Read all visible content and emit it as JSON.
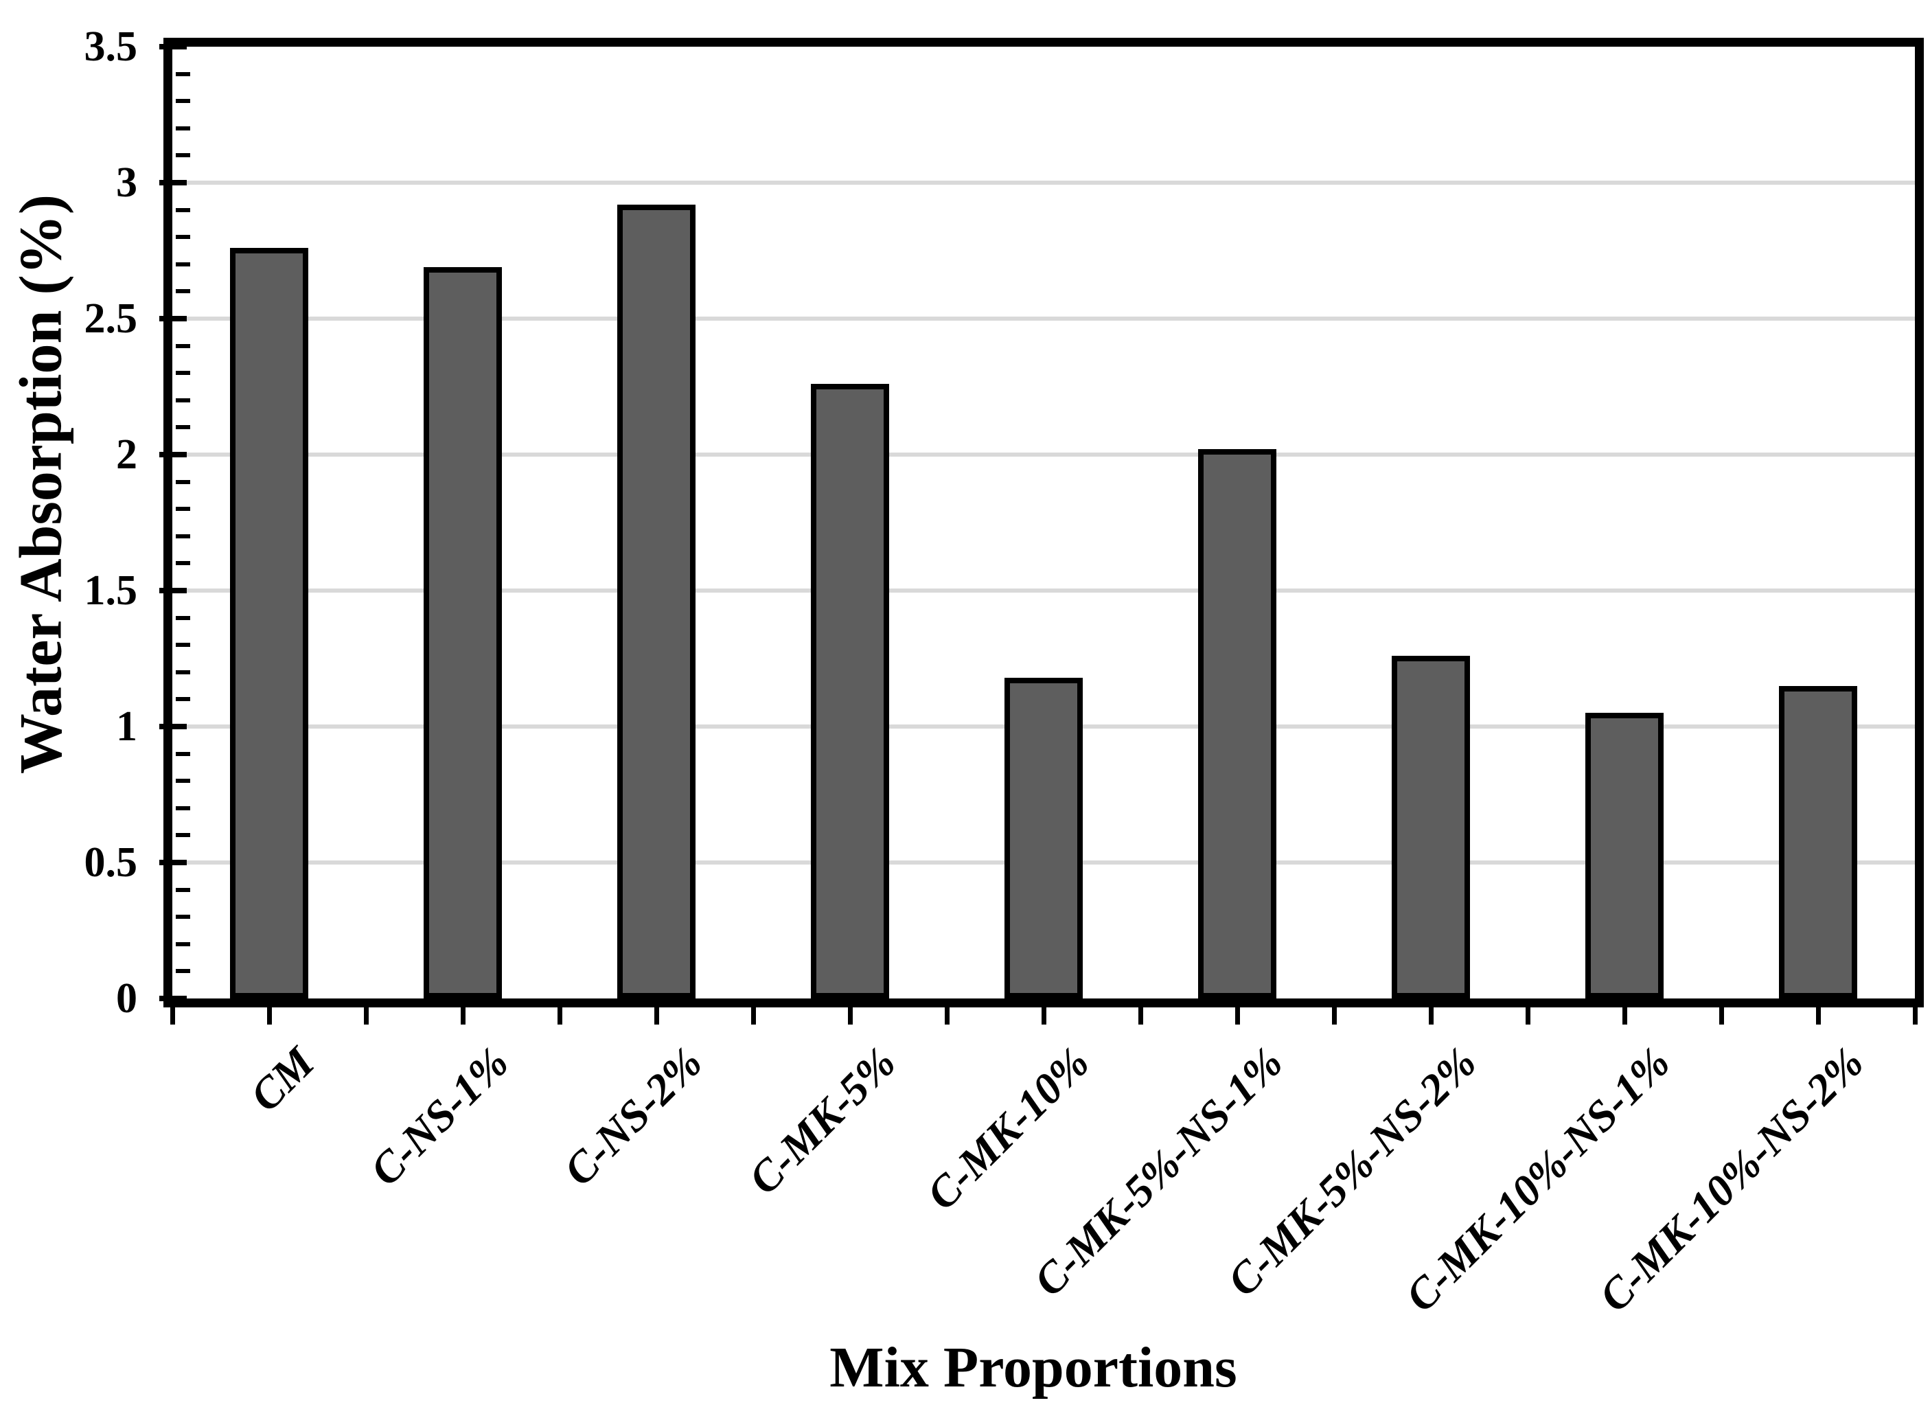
{
  "figure": {
    "background": "#FFFFFF"
  },
  "chart_data": {
    "type": "bar",
    "title": "",
    "xlabel": "Mix Proportions",
    "ylabel": "Water Absorption (%)",
    "categories": [
      "CM",
      "C-NS-1%",
      "C-NS-2%",
      "C-MK-5%",
      "C-MK-10%",
      "C-MK-5%-NS-1%",
      "C-MK-5%-NS-2%",
      "C-MK-10%-NS-1%",
      "C-MK-10%-NS-2%"
    ],
    "values": [
      2.76,
      2.69,
      2.92,
      2.26,
      1.18,
      2.02,
      1.26,
      1.05,
      1.15
    ],
    "ylim": [
      0,
      3.5
    ],
    "ytick_step": 0.5,
    "ytick_labels": [
      "0",
      "0.5",
      "1",
      "1.5",
      "2",
      "2.5",
      "3",
      "3.5"
    ],
    "yminor_step": 0.1,
    "grid": true,
    "legend": false,
    "xlabel_rotation_deg": -45,
    "bar_color": "#5E5E5E",
    "bar_border_color": "#000000",
    "gridline_color": "#D9D9D9",
    "axis_color": "#000000",
    "text_color": "#000000"
  }
}
